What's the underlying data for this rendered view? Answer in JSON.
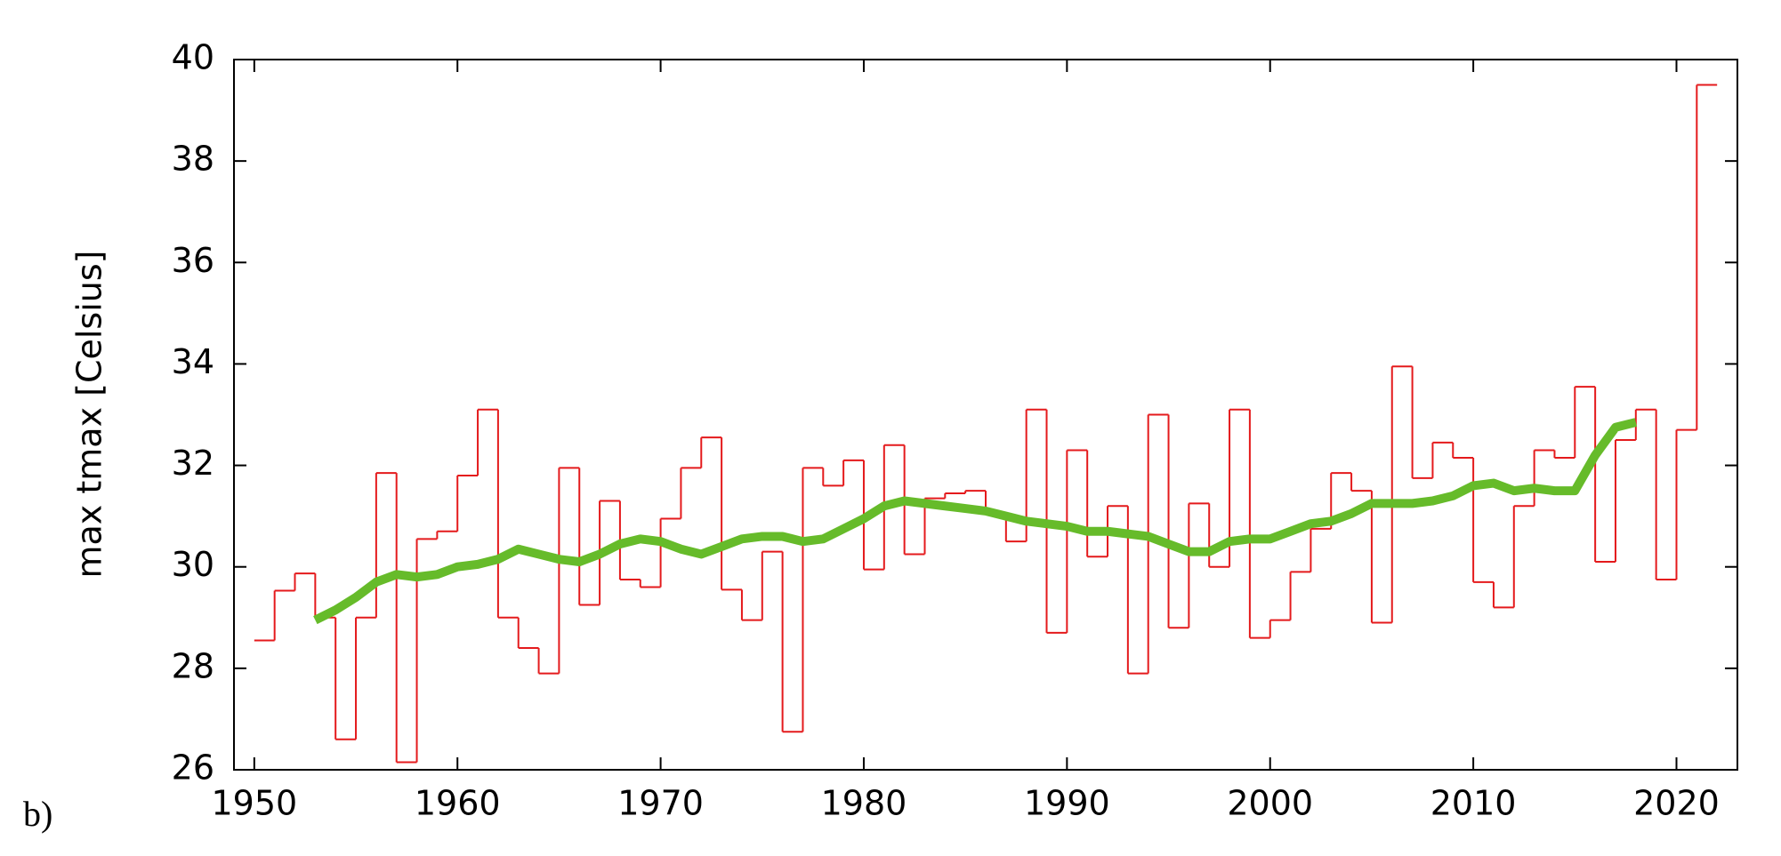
{
  "panel_label": "b)",
  "chart_data": {
    "type": "step-line",
    "y_label": "max tmax [Celsius]",
    "xlim": [
      1949,
      2023
    ],
    "ylim": [
      26,
      40
    ],
    "xticks": [
      1950,
      1960,
      1970,
      1980,
      1990,
      2000,
      2010,
      2020
    ],
    "yticks": [
      26,
      28,
      30,
      32,
      34,
      36,
      38,
      40
    ],
    "grid": false,
    "series": [
      {
        "kind": "steps",
        "color": "#e41a1c",
        "x": [
          1950,
          1951,
          1952,
          1953,
          1954,
          1955,
          1956,
          1957,
          1958,
          1959,
          1960,
          1961,
          1962,
          1963,
          1964,
          1965,
          1966,
          1967,
          1968,
          1969,
          1970,
          1971,
          1972,
          1973,
          1974,
          1975,
          1976,
          1977,
          1978,
          1979,
          1980,
          1981,
          1982,
          1983,
          1984,
          1985,
          1986,
          1987,
          1988,
          1989,
          1990,
          1991,
          1992,
          1993,
          1994,
          1995,
          1996,
          1997,
          1998,
          1999,
          2000,
          2001,
          2002,
          2003,
          2004,
          2005,
          2006,
          2007,
          2008,
          2009,
          2010,
          2011,
          2012,
          2013,
          2014,
          2015,
          2016,
          2017,
          2018,
          2019,
          2020,
          2021
        ],
        "values": [
          28.55,
          29.53,
          29.87,
          29.0,
          26.6,
          29.0,
          31.85,
          26.15,
          30.55,
          30.7,
          31.8,
          33.1,
          29.0,
          28.4,
          27.9,
          31.95,
          29.25,
          31.3,
          29.75,
          29.6,
          30.95,
          31.95,
          32.55,
          29.55,
          28.95,
          30.3,
          26.75,
          31.95,
          31.6,
          32.1,
          29.95,
          32.4,
          30.25,
          31.35,
          31.45,
          31.5,
          31.05,
          30.5,
          33.1,
          28.7,
          32.3,
          30.2,
          31.2,
          27.9,
          33.0,
          28.8,
          31.25,
          30.0,
          33.1,
          28.6,
          28.95,
          29.9,
          30.75,
          31.85,
          31.5,
          28.9,
          33.95,
          31.75,
          32.45,
          32.15,
          29.7,
          29.2,
          31.2,
          32.3,
          32.15,
          33.55,
          30.1,
          32.5,
          33.1,
          29.75,
          32.7,
          39.5
        ]
      },
      {
        "kind": "line",
        "color": "#66bb2a",
        "x": [
          1953,
          1954,
          1955,
          1956,
          1957,
          1958,
          1959,
          1960,
          1961,
          1962,
          1963,
          1964,
          1965,
          1966,
          1967,
          1968,
          1969,
          1970,
          1971,
          1972,
          1973,
          1974,
          1975,
          1976,
          1977,
          1978,
          1979,
          1980,
          1981,
          1982,
          1983,
          1984,
          1985,
          1986,
          1987,
          1988,
          1989,
          1990,
          1991,
          1992,
          1993,
          1994,
          1995,
          1996,
          1997,
          1998,
          1999,
          2000,
          2001,
          2002,
          2003,
          2004,
          2005,
          2006,
          2007,
          2008,
          2009,
          2010,
          2011,
          2012,
          2013,
          2014,
          2015,
          2016,
          2017,
          2018
        ],
        "values": [
          28.95,
          29.15,
          29.4,
          29.7,
          29.85,
          29.8,
          29.85,
          30.0,
          30.05,
          30.15,
          30.35,
          30.25,
          30.15,
          30.1,
          30.25,
          30.45,
          30.55,
          30.5,
          30.35,
          30.25,
          30.4,
          30.55,
          30.6,
          30.6,
          30.5,
          30.55,
          30.75,
          30.95,
          31.2,
          31.3,
          31.25,
          31.2,
          31.15,
          31.1,
          31.0,
          30.9,
          30.85,
          30.8,
          30.7,
          30.7,
          30.65,
          30.6,
          30.45,
          30.3,
          30.3,
          30.5,
          30.55,
          30.55,
          30.7,
          30.85,
          30.9,
          31.05,
          31.25,
          31.25,
          31.25,
          31.3,
          31.4,
          31.6,
          31.65,
          31.5,
          31.55,
          31.5,
          31.5,
          32.2,
          32.75,
          32.85
        ]
      }
    ]
  }
}
